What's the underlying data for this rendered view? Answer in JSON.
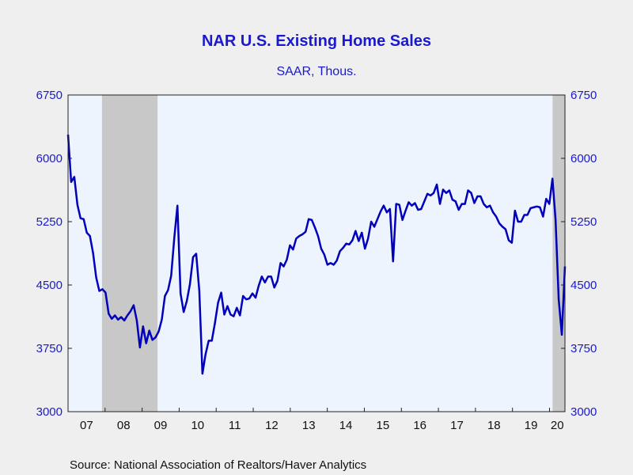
{
  "chart_data": {
    "type": "line",
    "title": "NAR U.S. Existing Home Sales",
    "subtitle": "SAAR, Thous.",
    "source": "Source:  National Association of Realtors/Haver Analytics",
    "y_ticks": [
      "3000",
      "3750",
      "4500",
      "5250",
      "6000",
      "6750"
    ],
    "x_ticks": [
      "07",
      "08",
      "09",
      "10",
      "11",
      "12",
      "13",
      "14",
      "15",
      "16",
      "17",
      "18",
      "19",
      "20"
    ],
    "ylim": [
      3000,
      6750
    ],
    "x_start": "2007-01",
    "x_end": "2020-06",
    "grid": false,
    "recession_shading": [
      {
        "start": "2007-12",
        "end": "2009-06"
      },
      {
        "start": "2020-02",
        "end": "2020-06"
      }
    ],
    "colors": {
      "line": "#0000bb",
      "plot_bg": "#eef4fd",
      "shade": "#c8c8c8",
      "text": "#1a1acc"
    },
    "series": [
      {
        "values": [
          6280,
          5720,
          5780,
          5450,
          5290,
          5280,
          5120,
          5080,
          4880,
          4590,
          4430,
          4450,
          4410,
          4160,
          4100,
          4140,
          4090,
          4120,
          4080,
          4140,
          4190,
          4260,
          4080,
          3760,
          4010,
          3810,
          3960,
          3850,
          3880,
          3950,
          4090,
          4370,
          4440,
          4610,
          5060,
          5440,
          4400,
          4180,
          4310,
          4510,
          4830,
          4870,
          4430,
          3450,
          3680,
          3840,
          3840,
          4050,
          4290,
          4410,
          4150,
          4250,
          4150,
          4130,
          4230,
          4140,
          4370,
          4330,
          4340,
          4400,
          4350,
          4490,
          4600,
          4530,
          4600,
          4600,
          4470,
          4550,
          4760,
          4720,
          4800,
          4970,
          4920,
          5050,
          5080,
          5100,
          5130,
          5280,
          5270,
          5180,
          5080,
          4930,
          4860,
          4740,
          4760,
          4740,
          4790,
          4900,
          4940,
          4990,
          4980,
          5030,
          5140,
          5020,
          5120,
          4930,
          5050,
          5250,
          5190,
          5280,
          5370,
          5440,
          5360,
          5400,
          4780,
          5460,
          5450,
          5270,
          5380,
          5480,
          5440,
          5470,
          5390,
          5400,
          5490,
          5580,
          5560,
          5590,
          5690,
          5460,
          5630,
          5590,
          5620,
          5510,
          5490,
          5390,
          5460,
          5460,
          5620,
          5590,
          5470,
          5550,
          5550,
          5460,
          5420,
          5440,
          5360,
          5310,
          5230,
          5190,
          5160,
          5030,
          5000,
          5380,
          5250,
          5250,
          5330,
          5330,
          5410,
          5420,
          5430,
          5420,
          5310,
          5520,
          5460,
          5760,
          5270,
          4330,
          3910,
          4720
        ]
      }
    ]
  }
}
